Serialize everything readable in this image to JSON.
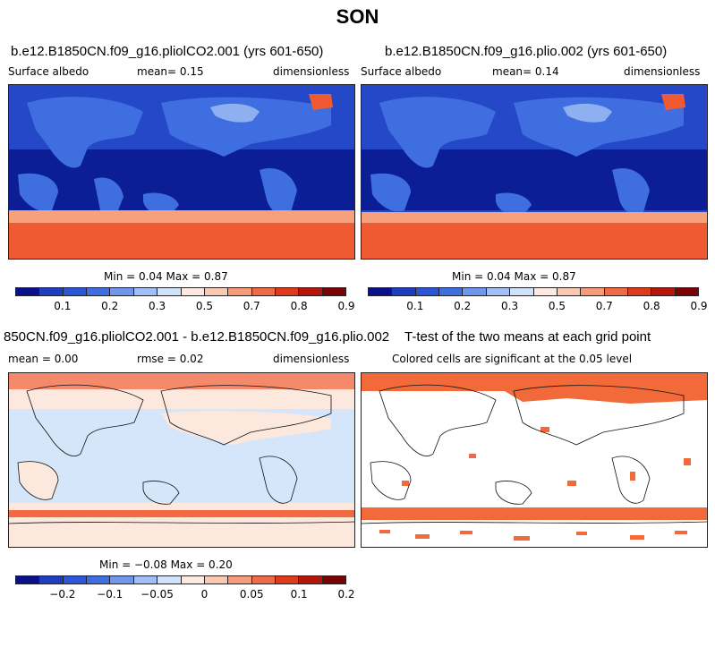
{
  "figure": {
    "title": "SON"
  },
  "panels": [
    {
      "title": "b.e12.B1850CN.f09_g16.pliolCO2.001 (yrs 601-650)",
      "left_label": "Surface albedo",
      "center_label": "mean=   0.15",
      "right_label": "dimensionless",
      "stats": "Min =   0.04 Max =   0.87"
    },
    {
      "title": "b.e12.B1850CN.f09_g16.plio.002 (yrs 601-650)",
      "left_label": "Surface albedo",
      "center_label": "mean=   0.14",
      "right_label": "dimensionless",
      "stats": "Min =   0.04 Max =   0.87"
    },
    {
      "title": "850CN.f09_g16.pliolCO2.001 - b.e12.B1850CN.f09_g16.plio.002",
      "left_label": "mean =   0.00",
      "center_label": "rmse =   0.02",
      "right_label": "dimensionless",
      "stats": "Min =  −0.08 Max =   0.20"
    },
    {
      "title": "T-test of the two means at each grid point",
      "subtitle": "Colored cells are significant at the 0.05 level"
    }
  ],
  "colorbars": {
    "albedo": {
      "colors": [
        "#0a0f8a",
        "#1d3fbf",
        "#2c56d6",
        "#3f6ee0",
        "#6f95ec",
        "#a2bff5",
        "#d0e2fa",
        "#fde9df",
        "#fbc8b2",
        "#f69a7c",
        "#ef6a47",
        "#e03a1c",
        "#b5160b",
        "#7a0306"
      ],
      "labels": [
        "0.1",
        "0.2",
        "0.3",
        "0.5",
        "0.7",
        "0.8",
        "0.9"
      ]
    },
    "difference": {
      "colors": [
        "#0a0f8a",
        "#1d3fbf",
        "#2c56d6",
        "#3f6ee0",
        "#6f95ec",
        "#a2bff5",
        "#d0e2fa",
        "#fde9df",
        "#fbc8b2",
        "#f69a7c",
        "#ef6a47",
        "#e03a1c",
        "#b5160b",
        "#7a0306"
      ],
      "labels": [
        "−0.2",
        "−0.1",
        "−0.05",
        "0",
        "0.05",
        "0.1",
        "0.2"
      ]
    }
  },
  "colors": {
    "ocean_low": "#0b1e95",
    "ocean_mid": "#2448c7",
    "land_mid": "#3f6ee0",
    "land_light": "#8fb0f0",
    "ice": "#ef5a32",
    "ice_light": "#f7a07c",
    "diff_neg": "#d6e6fa",
    "diff_pos": "#fde8de",
    "diff_band": "#f26a44",
    "signif": "#f26a3a"
  }
}
